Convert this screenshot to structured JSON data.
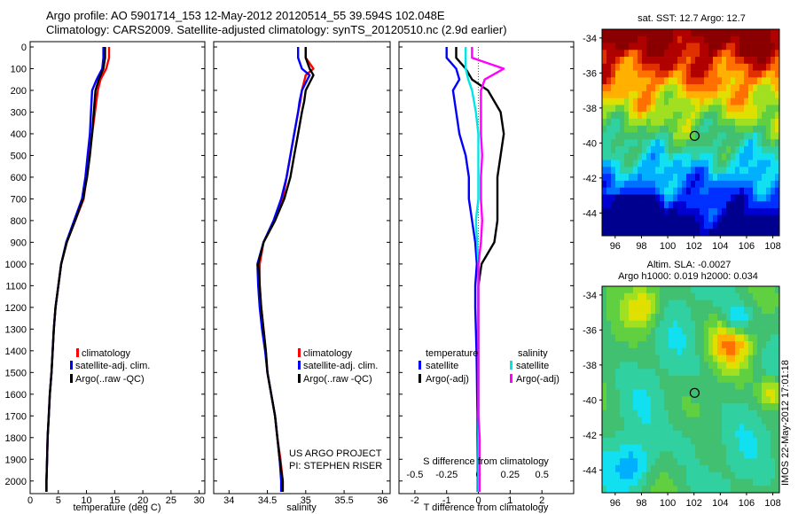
{
  "header": {
    "line1": "Argo profile: AO 5901714_153 12-May-2012 20120514_55 39.594S 102.048E",
    "line2": "Climatology: CARS2009. Satellite-adjusted climatology: synTS_20120510.nc (2.9d earlier)"
  },
  "credit": {
    "line1": "US ARGO PROJECT",
    "line2": "PI: STEPHEN RISER"
  },
  "stamp": "IMOS 22-May-2012 17:01:18",
  "colors": {
    "climatology": "#ff0000",
    "satellite": "#0000ff",
    "argo": "#000000",
    "sat_salinity": "#00e5e5",
    "argo_salinity": "#ff00ff"
  },
  "chart_data": [
    {
      "type": "line",
      "xlabel": "temperature (deg C)",
      "xlim": [
        0,
        31
      ],
      "xticks": [
        "0",
        "5",
        "10",
        "15",
        "20",
        "25",
        "30"
      ],
      "ylim": [
        0,
        2050
      ],
      "yticks": [
        "0",
        "100",
        "200",
        "300",
        "400",
        "500",
        "600",
        "700",
        "800",
        "900",
        "1000",
        "1100",
        "1200",
        "1300",
        "1400",
        "1500",
        "1600",
        "1700",
        "1800",
        "1900",
        "2000"
      ],
      "legend": [
        "climatology",
        "satellite-adj. clim.",
        "Argo(..raw -QC)"
      ],
      "depth": [
        0,
        50,
        100,
        150,
        200,
        300,
        400,
        500,
        600,
        700,
        800,
        900,
        1000,
        1100,
        1200,
        1300,
        1400,
        1500,
        1600,
        1700,
        1800,
        1900,
        2000,
        2050
      ],
      "series": [
        {
          "name": "climatology",
          "values": [
            14,
            14,
            13.5,
            12.5,
            12,
            11.5,
            11,
            10.5,
            10,
            9.5,
            8,
            6.5,
            5.5,
            5,
            4.5,
            4.2,
            4,
            3.8,
            3.5,
            3.3,
            3.1,
            3,
            2.9,
            2.9
          ]
        },
        {
          "name": "satellite-adj. clim.",
          "values": [
            13,
            13,
            12.8,
            11.8,
            11,
            10.8,
            10.6,
            10.2,
            9.8,
            9.2,
            7.8,
            6.4,
            5.5,
            5,
            4.5,
            4.2,
            4,
            3.8,
            3.5,
            3.3,
            3.1,
            3,
            2.9,
            2.9
          ]
        },
        {
          "name": "Argo(..raw -QC)",
          "values": [
            13.3,
            13.3,
            13,
            12.2,
            11.6,
            11.3,
            11,
            10.6,
            10.1,
            9.4,
            8,
            6.5,
            5.5,
            5,
            4.5,
            4.2,
            4,
            3.8,
            3.5,
            3.3,
            3.1,
            3,
            2.9,
            2.9
          ]
        }
      ]
    },
    {
      "type": "line",
      "xlabel": "salinity",
      "xlim": [
        33.8,
        36.1
      ],
      "xticks": [
        "34",
        "34.5",
        "35",
        "35.5",
        "36"
      ],
      "ylim": [
        0,
        2050
      ],
      "legend": [
        "climatology",
        "satellite-adj. clim.",
        "Argo(..raw -QC)"
      ],
      "depth": [
        0,
        50,
        100,
        130,
        200,
        250,
        300,
        400,
        500,
        600,
        700,
        800,
        900,
        1000,
        1100,
        1200,
        1300,
        1400,
        1500,
        1600,
        1700,
        1800,
        1900,
        2000,
        2050
      ],
      "series": [
        {
          "name": "climatology",
          "values": [
            35.0,
            35.0,
            35.1,
            35.0,
            34.95,
            34.93,
            34.9,
            34.85,
            34.8,
            34.75,
            34.7,
            34.6,
            34.45,
            34.4,
            34.4,
            34.42,
            34.45,
            34.48,
            34.5,
            34.55,
            34.6,
            34.63,
            34.67,
            34.7,
            34.7
          ]
        },
        {
          "name": "satellite-adj. clim.",
          "values": [
            34.9,
            34.9,
            34.95,
            35.05,
            34.95,
            34.92,
            34.9,
            34.85,
            34.8,
            34.75,
            34.68,
            34.58,
            34.45,
            34.37,
            34.38,
            34.4,
            34.43,
            34.47,
            34.5,
            34.55,
            34.6,
            34.63,
            34.66,
            34.68,
            34.68
          ]
        },
        {
          "name": "Argo(..raw -QC)",
          "values": [
            35.0,
            35.0,
            35.05,
            35.1,
            35.0,
            34.98,
            34.95,
            34.9,
            34.85,
            34.8,
            34.72,
            34.6,
            34.45,
            34.38,
            34.4,
            34.42,
            34.45,
            34.48,
            34.5,
            34.55,
            34.6,
            34.63,
            34.66,
            34.7,
            34.7
          ]
        }
      ]
    },
    {
      "type": "line",
      "xlabel": "T difference from climatology",
      "xlabel_top": "S difference from climatology",
      "xlim": [
        -2.5,
        3
      ],
      "xticks": [
        "-2",
        "-1",
        "0",
        "1",
        "2"
      ],
      "xticks_top": [
        "-0.5",
        "-0.25",
        "0",
        "0.25",
        "0.5"
      ],
      "ylim": [
        0,
        2050
      ],
      "legend_headers": [
        "temperature",
        "salinity"
      ],
      "legend": [
        "satellite",
        "Argo(-adj)",
        "satellite",
        "Argo(-adj)"
      ],
      "depth": [
        0,
        50,
        100,
        150,
        200,
        300,
        400,
        500,
        600,
        700,
        800,
        900,
        1000,
        1100,
        1200,
        1300,
        1400,
        1500,
        1600,
        1700,
        1800,
        1900,
        2000,
        2050
      ],
      "series": [
        {
          "name": "temperature satellite",
          "values": [
            -1.0,
            -1.0,
            -0.7,
            -0.6,
            -0.8,
            -0.7,
            -0.6,
            -0.4,
            -0.3,
            -0.3,
            -0.2,
            -0.1,
            -0.05,
            -0.1,
            -0.1,
            -0.08,
            -0.06,
            -0.05,
            -0.04,
            -0.03,
            -0.03,
            -0.02,
            -0.02,
            -0.02
          ]
        },
        {
          "name": "temperature Argo(-adj)",
          "values": [
            -0.7,
            -0.7,
            -0.4,
            -0.2,
            0.3,
            0.7,
            0.8,
            0.7,
            0.6,
            0.6,
            0.6,
            0.5,
            0.1,
            0.0,
            0.0,
            0.0,
            0.0,
            0.0,
            0.0,
            0.0,
            0.0,
            0.0,
            0.0,
            0.0
          ]
        },
        {
          "name": "salinity satellite",
          "values": [
            -0.1,
            -0.1,
            -0.1,
            -0.08,
            -0.05,
            -0.02,
            0.0,
            0.0,
            0.0,
            0.0,
            -0.02,
            -0.01,
            0.0,
            0.0,
            0.0,
            0.0,
            0.0,
            0.0,
            0.0,
            0.0,
            0.0,
            0.0,
            0.0,
            0.0
          ]
        },
        {
          "name": "salinity Argo(-adj)",
          "values": [
            -0.05,
            -0.05,
            0.2,
            0.05,
            0.02,
            0.02,
            0.02,
            0.03,
            0.02,
            0.02,
            0.03,
            0.02,
            0.0,
            0.0,
            0.0,
            0.0,
            0.0,
            0.0,
            0.0,
            0.0,
            0.01,
            0.01,
            0.01,
            0.01
          ]
        }
      ]
    },
    {
      "type": "heatmap",
      "title": "sat. SST: 12.7  Argo: 12.7",
      "xticks": [
        "96",
        "98",
        "100",
        "102",
        "104",
        "106",
        "108"
      ],
      "yticks": [
        "-34",
        "-36",
        "-38",
        "-40",
        "-42",
        "-44"
      ],
      "xlim": [
        95,
        108.5
      ],
      "ylim": [
        -45.3,
        -33.5
      ],
      "marker": {
        "lon": 102.048,
        "lat": -39.594
      }
    },
    {
      "type": "heatmap",
      "title": "Altim. SLA: -0.0027",
      "subtitle": "Argo h1000: 0.019  h2000: 0.034",
      "xticks": [
        "96",
        "98",
        "100",
        "102",
        "104",
        "106",
        "108"
      ],
      "yticks": [
        "-34",
        "-36",
        "-38",
        "-40",
        "-42",
        "-44"
      ],
      "xlim": [
        95,
        108.5
      ],
      "ylim": [
        -45.3,
        -33.5
      ],
      "marker": {
        "lon": 102.048,
        "lat": -39.594
      }
    }
  ]
}
